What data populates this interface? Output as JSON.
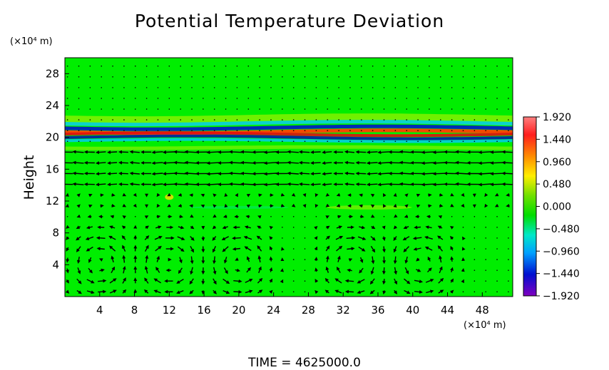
{
  "chart_data": {
    "type": "heatmap",
    "title": "Potential Temperature Deviation",
    "ylabel": "Height",
    "y_unit": "(×10⁴ m)",
    "x_unit": "(×10⁴ m)",
    "xlim": [
      0,
      51.5
    ],
    "ylim": [
      0,
      30
    ],
    "x_ticks": [
      4,
      8,
      12,
      16,
      20,
      24,
      28,
      32,
      36,
      40,
      44,
      48
    ],
    "y_ticks": [
      4,
      8,
      12,
      16,
      20,
      24,
      28
    ],
    "colorbar": {
      "min": -1.92,
      "max": 1.92,
      "tick_values": [
        1.92,
        1.44,
        0.96,
        0.48,
        0.0,
        -0.48,
        -0.96,
        -1.44,
        -1.92
      ],
      "tick_labels": [
        "1.920",
        "1.440",
        "0.960",
        "0.480",
        "0.000",
        "−0.480",
        "−0.960",
        "−1.440",
        "−1.920"
      ]
    },
    "field_description": "near-zero deviation (green) everywhere except a thin oscillating layer near height 20-21, with positive (red) and negative (blue) bands; overlaid wind vectors with strong circulation cells below height 10 and leftward flow near height 16-18",
    "anomaly_layers": [
      {
        "y_center": 20.4,
        "x_range": [
          0,
          51.5
        ],
        "max_deviation": 1.92,
        "min_deviation": -1.92
      }
    ],
    "footer": "TIME = 4625000.0",
    "colors": {
      "background_field": "#00ee00",
      "positive_extreme": "#e02020",
      "negative_extreme": "#2020c0",
      "vectors": "#000000"
    }
  }
}
